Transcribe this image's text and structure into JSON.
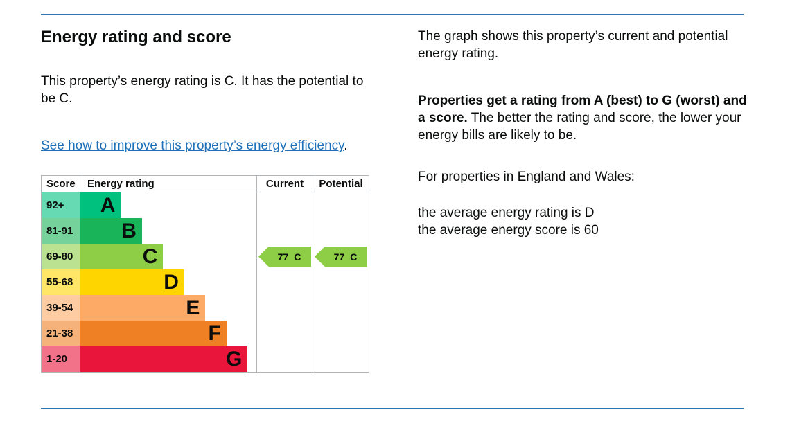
{
  "page": {
    "rule_color": "#2e75b6",
    "link_color": "#1d70b8",
    "text_color": "#0b0c0c",
    "table_border_color": "#b1b4b6"
  },
  "left_column": {
    "heading": "Energy rating and score",
    "intro": "This property’s energy rating is C. It has the potential to be C.",
    "improve_link": "See how to improve this property’s energy efficiency",
    "improve_suffix": "."
  },
  "right_column": {
    "graph_para": "The graph shows this property’s current and potential energy rating.",
    "rating_bold": "Properties get a rating from A (best) to G (worst) and a score.",
    "rating_rest": " The better the rating and score, the lower your energy bills are likely to be.",
    "region_para": "For properties in England and Wales:",
    "average_lines": [
      "the average energy rating is D",
      "the average energy score is 60"
    ]
  },
  "chart": {
    "type": "epc-rating-graph",
    "headers": {
      "score": "Score",
      "rating": "Energy rating",
      "current": "Current",
      "potential": "Potential"
    },
    "bands": [
      {
        "score": "92+",
        "letter": "A",
        "color": "#00c17e",
        "light_color": "#66dab2",
        "bar_width_pct": 23
      },
      {
        "score": "81-91",
        "letter": "B",
        "color": "#19b459",
        "light_color": "#75d29b",
        "bar_width_pct": 35
      },
      {
        "score": "69-80",
        "letter": "C",
        "color": "#8dce46",
        "light_color": "#bbe290",
        "bar_width_pct": 47
      },
      {
        "score": "55-68",
        "letter": "D",
        "color": "#ffd500",
        "light_color": "#ffe666",
        "bar_width_pct": 59
      },
      {
        "score": "39-54",
        "letter": "E",
        "color": "#fcaa65",
        "light_color": "#fdcca3",
        "bar_width_pct": 71
      },
      {
        "score": "21-38",
        "letter": "F",
        "color": "#ef8023",
        "light_color": "#f5b37b",
        "bar_width_pct": 83
      },
      {
        "score": "1-20",
        "letter": "G",
        "color": "#e9153b",
        "light_color": "#f27389",
        "bar_width_pct": 95
      }
    ],
    "current": {
      "score": "77",
      "band": "C",
      "row_index": 2,
      "arrow_color": "#8dce46"
    },
    "potential": {
      "score": "77",
      "band": "C",
      "row_index": 2,
      "arrow_color": "#8dce46"
    }
  }
}
